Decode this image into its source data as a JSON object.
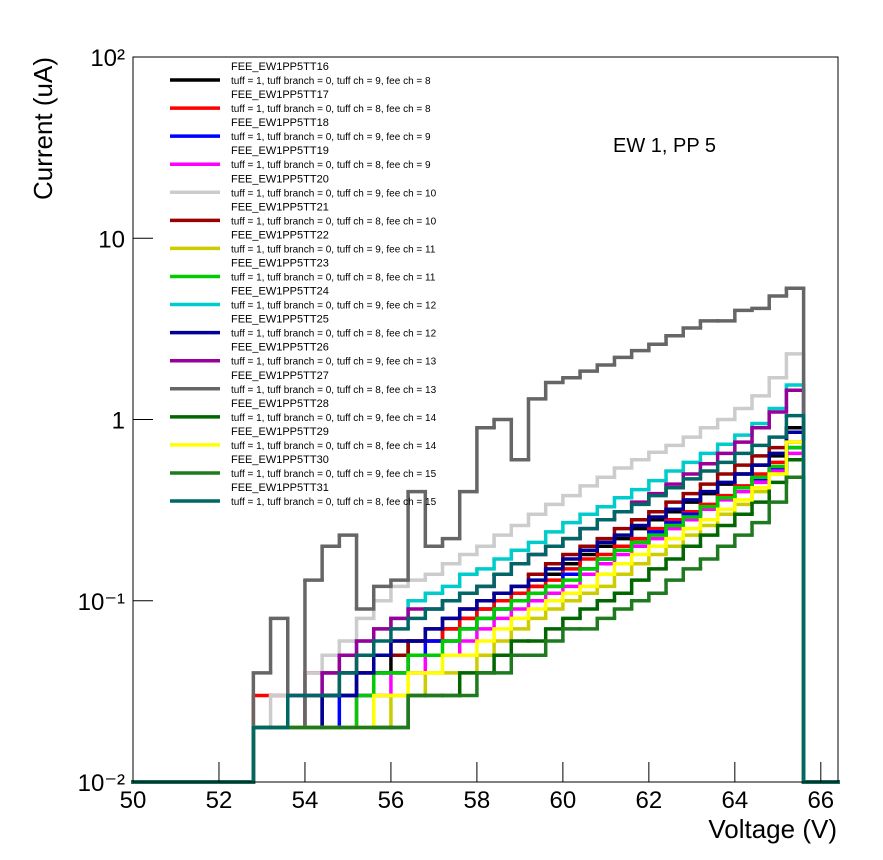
{
  "chart_data": {
    "type": "histogram",
    "x_label": "Voltage (V)",
    "y_label": "Current (uA)",
    "annotation": "EW 1, PP 5",
    "bins": [
      50,
      52.8,
      53.2,
      53.6,
      54,
      54.4,
      54.8,
      55.2,
      55.6,
      56,
      56.4,
      56.8,
      57.2,
      57.6,
      58,
      58.4,
      58.8,
      59.2,
      59.6,
      60,
      60.4,
      60.8,
      61.2,
      61.6,
      62,
      62.4,
      62.8,
      63.2,
      63.6,
      64,
      64.4,
      64.8,
      65.2,
      65.6,
      66.4
    ],
    "xlim": [
      50,
      66.4
    ],
    "xticks": [
      50,
      52,
      54,
      56,
      58,
      60,
      62,
      64,
      66
    ],
    "ylim": [
      0.01,
      100
    ],
    "log_y": true,
    "yticks": [
      {
        "value": 0.01,
        "label": "10⁻²"
      },
      {
        "value": 0.1,
        "label": "10⁻¹"
      },
      1,
      10,
      {
        "value": 100,
        "label": "10²"
      }
    ],
    "series": [
      {
        "name": "FEE_EW1PP5TT16",
        "info": "tuff = 1, tuff branch = 0, tuff ch = 9, fee ch = 8",
        "color": "#000000",
        "values": [
          0.01,
          0.02,
          0.02,
          0.02,
          0.02,
          0.03,
          0.03,
          0.04,
          0.04,
          0.05,
          0.06,
          0.06,
          0.07,
          0.08,
          0.09,
          0.1,
          0.11,
          0.12,
          0.14,
          0.16,
          0.18,
          0.2,
          0.22,
          0.25,
          0.28,
          0.31,
          0.35,
          0.39,
          0.44,
          0.5,
          0.56,
          0.63,
          0.9,
          0.01
        ]
      },
      {
        "name": "FEE_EW1PP5TT17",
        "info": "tuff = 1, tuff branch = 0, tuff ch = 8, fee ch = 8",
        "color": "#ff0000",
        "values": [
          0.01,
          0.03,
          0.03,
          0.03,
          0.04,
          0.04,
          0.04,
          0.05,
          0.05,
          0.06,
          0.06,
          0.06,
          0.07,
          0.08,
          0.09,
          0.1,
          0.11,
          0.12,
          0.13,
          0.15,
          0.17,
          0.18,
          0.2,
          0.22,
          0.25,
          0.28,
          0.31,
          0.34,
          0.38,
          0.43,
          0.5,
          0.58,
          0.75,
          0.01
        ]
      },
      {
        "name": "FEE_EW1PP5TT18",
        "info": "tuff = 1, tuff branch = 0, tuff ch = 9, fee ch = 9",
        "color": "#0000ff",
        "values": [
          0.01,
          0.02,
          0.02,
          0.02,
          0.02,
          0.02,
          0.03,
          0.03,
          0.04,
          0.04,
          0.05,
          0.06,
          0.06,
          0.07,
          0.08,
          0.09,
          0.1,
          0.11,
          0.12,
          0.14,
          0.15,
          0.17,
          0.19,
          0.21,
          0.24,
          0.27,
          0.3,
          0.33,
          0.37,
          0.42,
          0.47,
          0.53,
          0.7,
          0.01
        ]
      },
      {
        "name": "FEE_EW1PP5TT19",
        "info": "tuff = 1, tuff branch = 0, tuff ch = 8, fee ch = 9",
        "color": "#ff00ff",
        "values": [
          0.01,
          0.02,
          0.02,
          0.02,
          0.02,
          0.02,
          0.02,
          0.03,
          0.03,
          0.04,
          0.04,
          0.05,
          0.05,
          0.06,
          0.07,
          0.08,
          0.09,
          0.1,
          0.11,
          0.12,
          0.14,
          0.16,
          0.18,
          0.2,
          0.22,
          0.25,
          0.28,
          0.32,
          0.36,
          0.4,
          0.45,
          0.52,
          0.65,
          0.01
        ]
      },
      {
        "name": "FEE_EW1PP5TT20",
        "info": "tuff = 1, tuff branch = 0, tuff ch = 9, fee ch = 10",
        "color": "#cccccc",
        "values": [
          0.01,
          0.02,
          0.03,
          0.03,
          0.04,
          0.05,
          0.06,
          0.08,
          0.1,
          0.12,
          0.13,
          0.14,
          0.16,
          0.18,
          0.2,
          0.23,
          0.26,
          0.3,
          0.34,
          0.38,
          0.43,
          0.48,
          0.54,
          0.6,
          0.66,
          0.72,
          0.8,
          0.9,
          1.0,
          1.15,
          1.35,
          1.7,
          2.3,
          0.01
        ]
      },
      {
        "name": "FEE_EW1PP5TT21",
        "info": "tuff = 1, tuff branch = 0, tuff ch = 8, fee ch = 10",
        "color": "#990000",
        "values": [
          0.01,
          0.02,
          0.02,
          0.02,
          0.03,
          0.03,
          0.04,
          0.04,
          0.05,
          0.05,
          0.06,
          0.07,
          0.08,
          0.09,
          0.1,
          0.11,
          0.12,
          0.14,
          0.16,
          0.18,
          0.2,
          0.22,
          0.25,
          0.28,
          0.31,
          0.35,
          0.39,
          0.44,
          0.5,
          0.56,
          0.63,
          0.7,
          0.85,
          0.01
        ]
      },
      {
        "name": "FEE_EW1PP5TT22",
        "info": "tuff = 1, tuff branch = 0, tuff ch = 9, fee ch = 11",
        "color": "#cccc00",
        "values": [
          0.01,
          0.02,
          0.02,
          0.02,
          0.02,
          0.02,
          0.02,
          0.02,
          0.02,
          0.03,
          0.03,
          0.04,
          0.04,
          0.04,
          0.05,
          0.06,
          0.07,
          0.08,
          0.09,
          0.1,
          0.11,
          0.12,
          0.14,
          0.16,
          0.18,
          0.2,
          0.23,
          0.26,
          0.3,
          0.34,
          0.4,
          0.5,
          0.6,
          0.01
        ]
      },
      {
        "name": "FEE_EW1PP5TT23",
        "info": "tuff = 1, tuff branch = 0, tuff ch = 8, fee ch = 11",
        "color": "#00cc00",
        "values": [
          0.01,
          0.02,
          0.02,
          0.02,
          0.02,
          0.02,
          0.02,
          0.03,
          0.04,
          0.04,
          0.05,
          0.05,
          0.06,
          0.07,
          0.08,
          0.09,
          0.1,
          0.11,
          0.12,
          0.13,
          0.15,
          0.17,
          0.19,
          0.21,
          0.23,
          0.26,
          0.29,
          0.33,
          0.37,
          0.42,
          0.48,
          0.55,
          0.7,
          0.01
        ]
      },
      {
        "name": "FEE_EW1PP5TT24",
        "info": "tuff = 1, tuff branch = 0, tuff ch = 9, fee ch = 12",
        "color": "#00cccc",
        "values": [
          0.01,
          0.02,
          0.02,
          0.03,
          0.03,
          0.04,
          0.05,
          0.06,
          0.07,
          0.08,
          0.1,
          0.11,
          0.12,
          0.14,
          0.15,
          0.17,
          0.19,
          0.21,
          0.24,
          0.27,
          0.3,
          0.33,
          0.37,
          0.41,
          0.46,
          0.52,
          0.58,
          0.65,
          0.73,
          0.82,
          0.95,
          1.15,
          1.55,
          0.01
        ]
      },
      {
        "name": "FEE_EW1PP5TT25",
        "info": "tuff = 1, tuff branch = 0, tuff ch = 8, fee ch = 12",
        "color": "#000099",
        "values": [
          0.01,
          0.02,
          0.02,
          0.02,
          0.02,
          0.03,
          0.03,
          0.04,
          0.05,
          0.06,
          0.06,
          0.07,
          0.08,
          0.09,
          0.1,
          0.11,
          0.12,
          0.13,
          0.15,
          0.17,
          0.19,
          0.21,
          0.23,
          0.26,
          0.29,
          0.32,
          0.36,
          0.4,
          0.45,
          0.5,
          0.56,
          0.65,
          0.85,
          0.01
        ]
      },
      {
        "name": "FEE_EW1PP5TT26",
        "info": "tuff = 1, tuff branch = 0, tuff ch = 9, fee ch = 13",
        "color": "#990099",
        "values": [
          0.01,
          0.02,
          0.02,
          0.03,
          0.03,
          0.04,
          0.05,
          0.06,
          0.07,
          0.08,
          0.09,
          0.09,
          0.1,
          0.11,
          0.12,
          0.14,
          0.16,
          0.18,
          0.2,
          0.22,
          0.25,
          0.28,
          0.31,
          0.35,
          0.39,
          0.44,
          0.5,
          0.57,
          0.65,
          0.75,
          0.9,
          1.1,
          1.45,
          0.01
        ]
      },
      {
        "name": "FEE_EW1PP5TT27",
        "info": "tuff = 1, tuff branch = 0, tuff ch = 8, fee ch = 13",
        "color": "#666666",
        "values": [
          0.01,
          0.04,
          0.08,
          0.02,
          0.13,
          0.2,
          0.23,
          0.09,
          0.12,
          0.13,
          0.4,
          0.2,
          0.22,
          0.4,
          0.9,
          1.0,
          0.6,
          1.3,
          1.6,
          1.7,
          1.85,
          2.0,
          2.2,
          2.4,
          2.6,
          2.9,
          3.2,
          3.5,
          3.5,
          4.0,
          4.1,
          4.8,
          5.3,
          0.01
        ]
      },
      {
        "name": "FEE_EW1PP5TT28",
        "info": "tuff = 1, tuff branch = 0, tuff ch = 9, fee ch = 14",
        "color": "#006600",
        "values": [
          0.01,
          0.02,
          0.02,
          0.02,
          0.02,
          0.02,
          0.02,
          0.02,
          0.02,
          0.02,
          0.03,
          0.03,
          0.03,
          0.04,
          0.04,
          0.05,
          0.06,
          0.06,
          0.07,
          0.08,
          0.09,
          0.1,
          0.11,
          0.13,
          0.15,
          0.17,
          0.2,
          0.23,
          0.26,
          0.3,
          0.35,
          0.45,
          0.6,
          0.01
        ]
      },
      {
        "name": "FEE_EW1PP5TT29",
        "info": "tuff = 1, tuff branch = 0, tuff ch = 8, fee ch = 14",
        "color": "#ffff00",
        "values": [
          0.01,
          0.02,
          0.02,
          0.02,
          0.02,
          0.02,
          0.02,
          0.02,
          0.03,
          0.03,
          0.04,
          0.04,
          0.05,
          0.05,
          0.06,
          0.07,
          0.08,
          0.09,
          0.1,
          0.11,
          0.12,
          0.14,
          0.16,
          0.18,
          0.2,
          0.22,
          0.25,
          0.28,
          0.32,
          0.36,
          0.42,
          0.5,
          0.75,
          0.01
        ]
      },
      {
        "name": "FEE_EW1PP5TT30",
        "info": "tuff = 1, tuff branch = 0, tuff ch = 9, fee ch = 15",
        "color": "#1f7a1f",
        "values": [
          0.01,
          0.02,
          0.02,
          0.02,
          0.02,
          0.02,
          0.02,
          0.02,
          0.02,
          0.02,
          0.03,
          0.03,
          0.03,
          0.03,
          0.04,
          0.04,
          0.05,
          0.05,
          0.06,
          0.07,
          0.07,
          0.08,
          0.09,
          0.1,
          0.11,
          0.13,
          0.15,
          0.17,
          0.2,
          0.23,
          0.27,
          0.35,
          0.48,
          0.01
        ]
      },
      {
        "name": "FEE_EW1PP5TT31",
        "info": "tuff = 1, tuff branch = 0, tuff ch = 8, fee ch = 15",
        "color": "#006666",
        "values": [
          0.01,
          0.02,
          0.02,
          0.03,
          0.03,
          0.03,
          0.04,
          0.05,
          0.06,
          0.07,
          0.08,
          0.09,
          0.1,
          0.11,
          0.12,
          0.14,
          0.16,
          0.18,
          0.2,
          0.22,
          0.25,
          0.28,
          0.31,
          0.34,
          0.38,
          0.42,
          0.47,
          0.52,
          0.58,
          0.65,
          0.72,
          0.8,
          1.05,
          0.01
        ]
      }
    ]
  }
}
